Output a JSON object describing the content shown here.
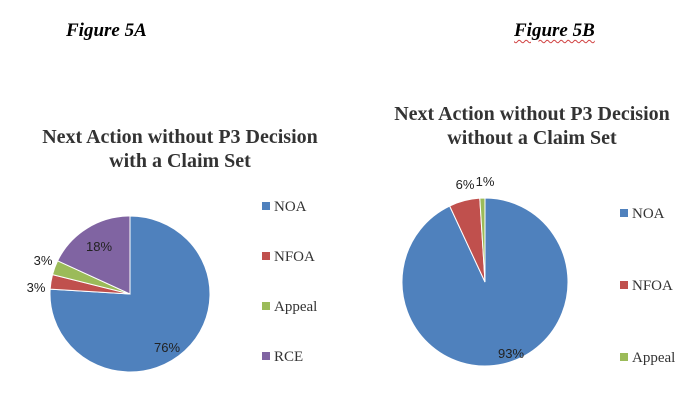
{
  "figures": {
    "a_label": "Figure 5A",
    "b_label": "Figure 5B"
  },
  "chart_data": [
    {
      "type": "pie",
      "title_line1": "Next Action without P3 Decision",
      "title_line2": "with a Claim Set",
      "categories": [
        "NOA",
        "NFOA",
        "Appeal",
        "RCE"
      ],
      "values": [
        76,
        3,
        3,
        18
      ],
      "data_labels": [
        "76%",
        "3%",
        "3%",
        "18%"
      ],
      "colors": [
        "#4f81bd",
        "#c0504d",
        "#9bbb59",
        "#8064a2"
      ],
      "legend_placement": "right"
    },
    {
      "type": "pie",
      "title_line1": "Next Action without P3 Decision",
      "title_line2": "without a Claim Set",
      "categories": [
        "NOA",
        "NFOA",
        "Appeal"
      ],
      "values": [
        93,
        6,
        1
      ],
      "data_labels": [
        "93%",
        "6%",
        "1%"
      ],
      "colors": [
        "#4f81bd",
        "#c0504d",
        "#9bbb59"
      ],
      "legend_placement": "right"
    }
  ]
}
